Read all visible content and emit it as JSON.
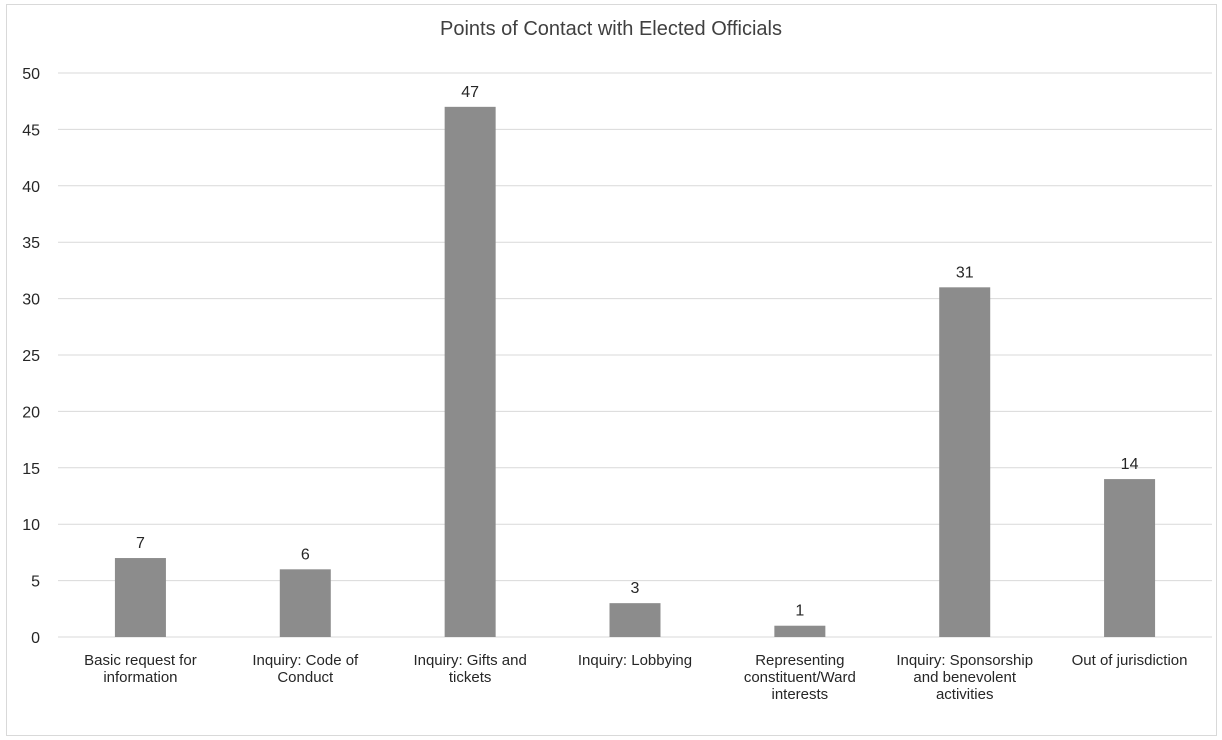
{
  "chart_data": {
    "type": "bar",
    "title": "Points of Contact with Elected Officials",
    "categories": [
      "Basic request for information",
      "Inquiry: Code of Conduct",
      "Inquiry: Gifts and tickets",
      "Inquiry: Lobbying",
      "Representing constituent/Ward interests",
      "Inquiry: Sponsorship and benevolent activities",
      "Out of jurisdiction"
    ],
    "values": [
      7,
      6,
      47,
      3,
      1,
      31,
      14
    ],
    "data_labels": [
      "7",
      "6",
      "47",
      "3",
      "1",
      "31",
      "14"
    ],
    "ylim": [
      0,
      50
    ],
    "yticks": [
      0,
      5,
      10,
      15,
      20,
      25,
      30,
      35,
      40,
      45,
      50
    ],
    "xlabel": "",
    "ylabel": "",
    "grid": true,
    "legend": "none",
    "bar_color": "#8c8c8c",
    "grid_color": "#d9d9d9"
  }
}
